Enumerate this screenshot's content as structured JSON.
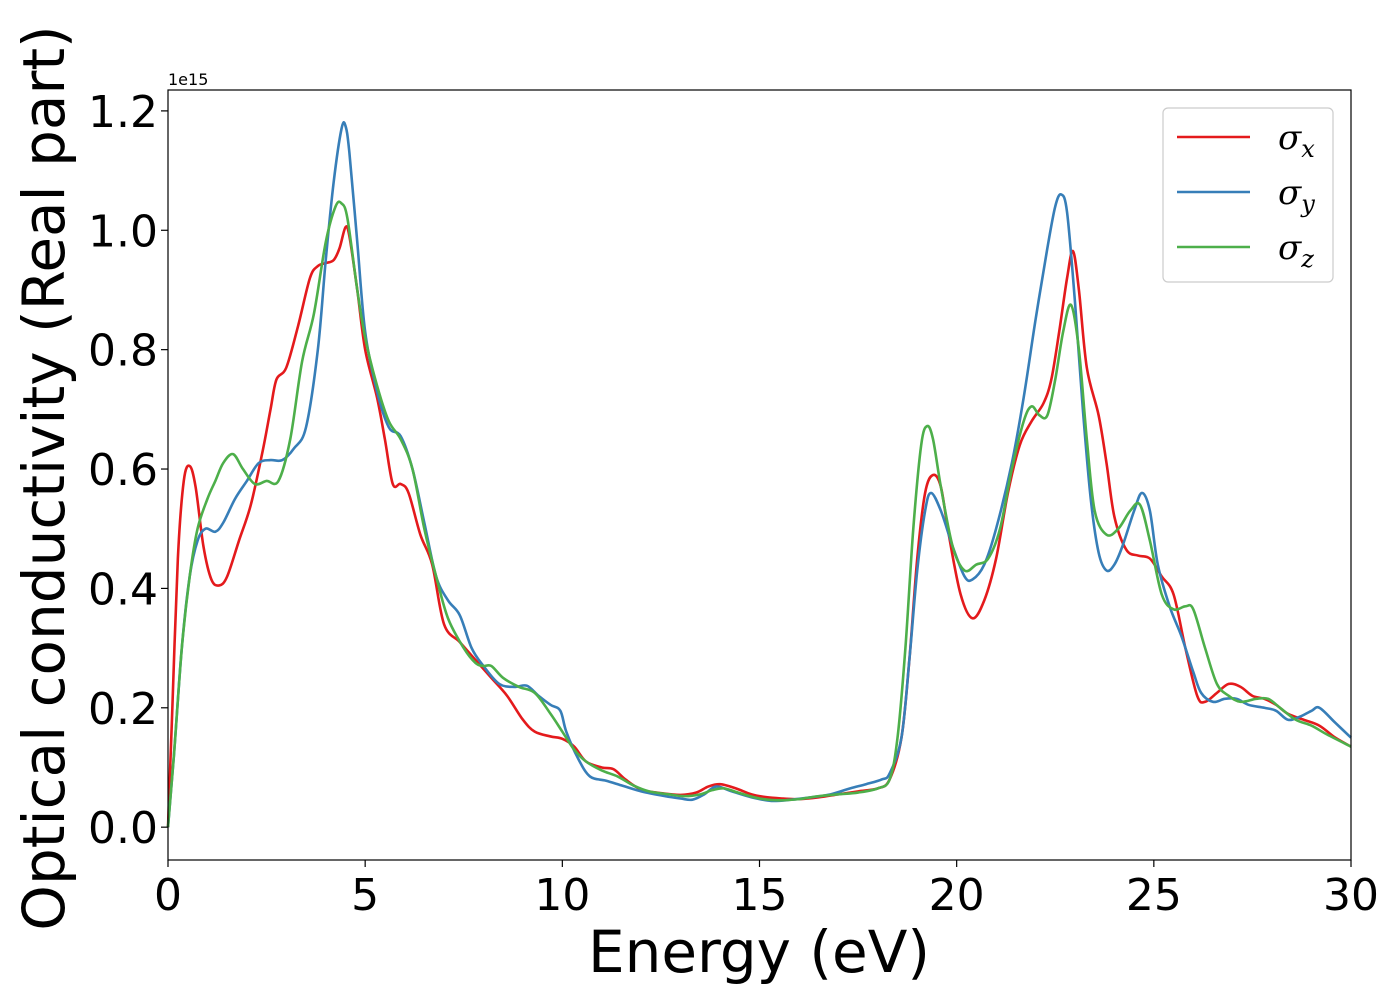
{
  "chart_data": {
    "type": "line",
    "title": "",
    "xlabel": "Energy (eV)",
    "ylabel": "Optical conductivity (Real part)",
    "y_offset_text": "1e15",
    "xlim": [
      0,
      30
    ],
    "ylim": [
      -0.055,
      1.235
    ],
    "x_ticks": [
      0,
      5,
      10,
      15,
      20,
      25,
      30
    ],
    "x_tick_labels": [
      "0",
      "5",
      "10",
      "15",
      "20",
      "25",
      "30"
    ],
    "y_ticks": [
      0.0,
      0.2,
      0.4,
      0.6,
      0.8,
      1.0,
      1.2
    ],
    "y_tick_labels": [
      "0.0",
      "0.2",
      "0.4",
      "0.6",
      "0.8",
      "1.0",
      "1.2"
    ],
    "grid": false,
    "legend_position": "top-right",
    "series": [
      {
        "name": "σx",
        "base": "σ",
        "sub": "x",
        "color": "#e41a1c",
        "points": [
          [
            0,
            0
          ],
          [
            0.1,
            0.18
          ],
          [
            0.25,
            0.45
          ],
          [
            0.4,
            0.58
          ],
          [
            0.55,
            0.605
          ],
          [
            0.7,
            0.57
          ],
          [
            0.9,
            0.47
          ],
          [
            1.1,
            0.415
          ],
          [
            1.3,
            0.405
          ],
          [
            1.5,
            0.42
          ],
          [
            1.8,
            0.48
          ],
          [
            2.1,
            0.54
          ],
          [
            2.4,
            0.63
          ],
          [
            2.6,
            0.7
          ],
          [
            2.75,
            0.75
          ],
          [
            3.0,
            0.77
          ],
          [
            3.3,
            0.84
          ],
          [
            3.6,
            0.92
          ],
          [
            3.8,
            0.94
          ],
          [
            4.0,
            0.945
          ],
          [
            4.2,
            0.95
          ],
          [
            4.35,
            0.97
          ],
          [
            4.5,
            1.005
          ],
          [
            4.6,
            0.99
          ],
          [
            4.8,
            0.9
          ],
          [
            5.0,
            0.8
          ],
          [
            5.3,
            0.72
          ],
          [
            5.5,
            0.65
          ],
          [
            5.7,
            0.575
          ],
          [
            5.9,
            0.575
          ],
          [
            6.1,
            0.56
          ],
          [
            6.4,
            0.49
          ],
          [
            6.7,
            0.44
          ],
          [
            7.0,
            0.34
          ],
          [
            7.4,
            0.31
          ],
          [
            7.8,
            0.28
          ],
          [
            8.2,
            0.25
          ],
          [
            8.6,
            0.22
          ],
          [
            9.0,
            0.18
          ],
          [
            9.3,
            0.16
          ],
          [
            9.7,
            0.152
          ],
          [
            10.0,
            0.148
          ],
          [
            10.3,
            0.135
          ],
          [
            10.6,
            0.11
          ],
          [
            11.0,
            0.1
          ],
          [
            11.3,
            0.097
          ],
          [
            11.6,
            0.08
          ],
          [
            12.0,
            0.063
          ],
          [
            12.5,
            0.057
          ],
          [
            13.0,
            0.054
          ],
          [
            13.4,
            0.058
          ],
          [
            13.7,
            0.068
          ],
          [
            14.0,
            0.072
          ],
          [
            14.4,
            0.065
          ],
          [
            14.8,
            0.055
          ],
          [
            15.2,
            0.05
          ],
          [
            15.6,
            0.048
          ],
          [
            16.0,
            0.047
          ],
          [
            16.5,
            0.05
          ],
          [
            17.0,
            0.055
          ],
          [
            17.5,
            0.06
          ],
          [
            18.0,
            0.065
          ],
          [
            18.3,
            0.08
          ],
          [
            18.6,
            0.15
          ],
          [
            18.8,
            0.28
          ],
          [
            19.0,
            0.45
          ],
          [
            19.2,
            0.56
          ],
          [
            19.4,
            0.59
          ],
          [
            19.6,
            0.57
          ],
          [
            19.8,
            0.49
          ],
          [
            20.1,
            0.39
          ],
          [
            20.4,
            0.35
          ],
          [
            20.7,
            0.38
          ],
          [
            21.0,
            0.45
          ],
          [
            21.3,
            0.56
          ],
          [
            21.6,
            0.64
          ],
          [
            21.9,
            0.68
          ],
          [
            22.2,
            0.71
          ],
          [
            22.4,
            0.75
          ],
          [
            22.6,
            0.83
          ],
          [
            22.8,
            0.92
          ],
          [
            22.95,
            0.965
          ],
          [
            23.1,
            0.9
          ],
          [
            23.3,
            0.77
          ],
          [
            23.6,
            0.69
          ],
          [
            23.8,
            0.61
          ],
          [
            24.0,
            0.52
          ],
          [
            24.3,
            0.465
          ],
          [
            24.6,
            0.455
          ],
          [
            24.9,
            0.45
          ],
          [
            25.2,
            0.42
          ],
          [
            25.5,
            0.39
          ],
          [
            25.8,
            0.3
          ],
          [
            26.1,
            0.22
          ],
          [
            26.3,
            0.21
          ],
          [
            26.6,
            0.225
          ],
          [
            26.9,
            0.24
          ],
          [
            27.2,
            0.235
          ],
          [
            27.5,
            0.22
          ],
          [
            27.8,
            0.215
          ],
          [
            28.1,
            0.205
          ],
          [
            28.4,
            0.19
          ],
          [
            28.8,
            0.18
          ],
          [
            29.2,
            0.17
          ],
          [
            29.6,
            0.15
          ],
          [
            30.0,
            0.135
          ]
        ]
      },
      {
        "name": "σy",
        "base": "σ",
        "sub": "y",
        "color": "#377eb8",
        "points": [
          [
            0,
            0
          ],
          [
            0.15,
            0.12
          ],
          [
            0.35,
            0.3
          ],
          [
            0.55,
            0.42
          ],
          [
            0.75,
            0.48
          ],
          [
            0.95,
            0.5
          ],
          [
            1.2,
            0.495
          ],
          [
            1.4,
            0.51
          ],
          [
            1.7,
            0.55
          ],
          [
            2.0,
            0.58
          ],
          [
            2.3,
            0.61
          ],
          [
            2.6,
            0.615
          ],
          [
            2.9,
            0.615
          ],
          [
            3.2,
            0.635
          ],
          [
            3.5,
            0.67
          ],
          [
            3.8,
            0.8
          ],
          [
            4.0,
            0.95
          ],
          [
            4.2,
            1.08
          ],
          [
            4.4,
            1.17
          ],
          [
            4.5,
            1.175
          ],
          [
            4.6,
            1.13
          ],
          [
            4.8,
            0.98
          ],
          [
            5.0,
            0.83
          ],
          [
            5.3,
            0.73
          ],
          [
            5.6,
            0.67
          ],
          [
            5.9,
            0.655
          ],
          [
            6.2,
            0.6
          ],
          [
            6.5,
            0.51
          ],
          [
            6.8,
            0.42
          ],
          [
            7.1,
            0.38
          ],
          [
            7.4,
            0.355
          ],
          [
            7.7,
            0.3
          ],
          [
            8.0,
            0.27
          ],
          [
            8.4,
            0.24
          ],
          [
            8.8,
            0.235
          ],
          [
            9.1,
            0.237
          ],
          [
            9.4,
            0.22
          ],
          [
            9.7,
            0.205
          ],
          [
            9.95,
            0.195
          ],
          [
            10.1,
            0.16
          ],
          [
            10.4,
            0.115
          ],
          [
            10.7,
            0.085
          ],
          [
            11.1,
            0.078
          ],
          [
            11.5,
            0.07
          ],
          [
            12.0,
            0.06
          ],
          [
            12.6,
            0.052
          ],
          [
            13.0,
            0.048
          ],
          [
            13.3,
            0.046
          ],
          [
            13.6,
            0.055
          ],
          [
            13.9,
            0.068
          ],
          [
            14.3,
            0.06
          ],
          [
            14.8,
            0.05
          ],
          [
            15.3,
            0.044
          ],
          [
            15.8,
            0.046
          ],
          [
            16.3,
            0.05
          ],
          [
            16.8,
            0.055
          ],
          [
            17.3,
            0.065
          ],
          [
            17.7,
            0.072
          ],
          [
            18.1,
            0.08
          ],
          [
            18.3,
            0.09
          ],
          [
            18.6,
            0.15
          ],
          [
            18.8,
            0.28
          ],
          [
            19.0,
            0.43
          ],
          [
            19.2,
            0.53
          ],
          [
            19.35,
            0.56
          ],
          [
            19.6,
            0.53
          ],
          [
            19.9,
            0.47
          ],
          [
            20.2,
            0.42
          ],
          [
            20.4,
            0.415
          ],
          [
            20.7,
            0.44
          ],
          [
            21.0,
            0.5
          ],
          [
            21.4,
            0.61
          ],
          [
            21.7,
            0.72
          ],
          [
            22.0,
            0.85
          ],
          [
            22.3,
            0.97
          ],
          [
            22.5,
            1.04
          ],
          [
            22.65,
            1.06
          ],
          [
            22.8,
            1.03
          ],
          [
            23.0,
            0.88
          ],
          [
            23.2,
            0.7
          ],
          [
            23.4,
            0.55
          ],
          [
            23.6,
            0.46
          ],
          [
            23.8,
            0.43
          ],
          [
            24.0,
            0.44
          ],
          [
            24.2,
            0.47
          ],
          [
            24.5,
            0.53
          ],
          [
            24.7,
            0.56
          ],
          [
            24.9,
            0.53
          ],
          [
            25.1,
            0.44
          ],
          [
            25.4,
            0.37
          ],
          [
            25.7,
            0.32
          ],
          [
            26.0,
            0.26
          ],
          [
            26.2,
            0.225
          ],
          [
            26.5,
            0.21
          ],
          [
            26.8,
            0.215
          ],
          [
            27.1,
            0.215
          ],
          [
            27.4,
            0.205
          ],
          [
            27.8,
            0.2
          ],
          [
            28.1,
            0.195
          ],
          [
            28.4,
            0.18
          ],
          [
            28.7,
            0.185
          ],
          [
            29.0,
            0.195
          ],
          [
            29.2,
            0.2
          ],
          [
            29.6,
            0.175
          ],
          [
            30.0,
            0.15
          ]
        ]
      },
      {
        "name": "σz",
        "base": "σ",
        "sub": "z",
        "color": "#4daf4a",
        "points": [
          [
            0,
            0
          ],
          [
            0.15,
            0.12
          ],
          [
            0.35,
            0.3
          ],
          [
            0.55,
            0.42
          ],
          [
            0.75,
            0.5
          ],
          [
            1.0,
            0.55
          ],
          [
            1.2,
            0.58
          ],
          [
            1.4,
            0.61
          ],
          [
            1.65,
            0.625
          ],
          [
            1.9,
            0.6
          ],
          [
            2.2,
            0.575
          ],
          [
            2.5,
            0.58
          ],
          [
            2.8,
            0.58
          ],
          [
            3.1,
            0.65
          ],
          [
            3.4,
            0.78
          ],
          [
            3.7,
            0.86
          ],
          [
            4.0,
            0.98
          ],
          [
            4.25,
            1.04
          ],
          [
            4.4,
            1.045
          ],
          [
            4.55,
            1.02
          ],
          [
            4.8,
            0.9
          ],
          [
            5.0,
            0.82
          ],
          [
            5.3,
            0.74
          ],
          [
            5.6,
            0.68
          ],
          [
            5.9,
            0.65
          ],
          [
            6.2,
            0.6
          ],
          [
            6.5,
            0.5
          ],
          [
            6.8,
            0.42
          ],
          [
            7.1,
            0.35
          ],
          [
            7.5,
            0.3
          ],
          [
            7.8,
            0.275
          ],
          [
            8.0,
            0.27
          ],
          [
            8.2,
            0.27
          ],
          [
            8.5,
            0.25
          ],
          [
            8.9,
            0.235
          ],
          [
            9.3,
            0.225
          ],
          [
            9.7,
            0.19
          ],
          [
            10.0,
            0.16
          ],
          [
            10.3,
            0.13
          ],
          [
            10.6,
            0.11
          ],
          [
            11.0,
            0.095
          ],
          [
            11.4,
            0.085
          ],
          [
            11.8,
            0.07
          ],
          [
            12.2,
            0.06
          ],
          [
            12.7,
            0.055
          ],
          [
            13.1,
            0.052
          ],
          [
            13.5,
            0.055
          ],
          [
            13.8,
            0.062
          ],
          [
            14.1,
            0.065
          ],
          [
            14.5,
            0.057
          ],
          [
            15.0,
            0.048
          ],
          [
            15.5,
            0.045
          ],
          [
            16.0,
            0.047
          ],
          [
            16.5,
            0.052
          ],
          [
            17.0,
            0.055
          ],
          [
            17.5,
            0.058
          ],
          [
            18.0,
            0.065
          ],
          [
            18.3,
            0.08
          ],
          [
            18.5,
            0.15
          ],
          [
            18.7,
            0.3
          ],
          [
            18.9,
            0.5
          ],
          [
            19.1,
            0.64
          ],
          [
            19.25,
            0.672
          ],
          [
            19.4,
            0.65
          ],
          [
            19.6,
            0.57
          ],
          [
            19.9,
            0.47
          ],
          [
            20.2,
            0.43
          ],
          [
            20.5,
            0.44
          ],
          [
            20.8,
            0.45
          ],
          [
            21.1,
            0.5
          ],
          [
            21.4,
            0.6
          ],
          [
            21.7,
            0.68
          ],
          [
            21.9,
            0.705
          ],
          [
            22.1,
            0.69
          ],
          [
            22.3,
            0.69
          ],
          [
            22.5,
            0.75
          ],
          [
            22.7,
            0.83
          ],
          [
            22.9,
            0.875
          ],
          [
            23.1,
            0.8
          ],
          [
            23.3,
            0.65
          ],
          [
            23.5,
            0.53
          ],
          [
            23.8,
            0.49
          ],
          [
            24.1,
            0.5
          ],
          [
            24.4,
            0.53
          ],
          [
            24.65,
            0.54
          ],
          [
            24.9,
            0.48
          ],
          [
            25.2,
            0.39
          ],
          [
            25.5,
            0.365
          ],
          [
            25.8,
            0.37
          ],
          [
            26.0,
            0.365
          ],
          [
            26.3,
            0.3
          ],
          [
            26.6,
            0.24
          ],
          [
            26.9,
            0.22
          ],
          [
            27.2,
            0.21
          ],
          [
            27.6,
            0.215
          ],
          [
            27.9,
            0.215
          ],
          [
            28.2,
            0.2
          ],
          [
            28.6,
            0.18
          ],
          [
            29.0,
            0.17
          ],
          [
            29.4,
            0.155
          ],
          [
            30.0,
            0.135
          ]
        ]
      }
    ]
  }
}
